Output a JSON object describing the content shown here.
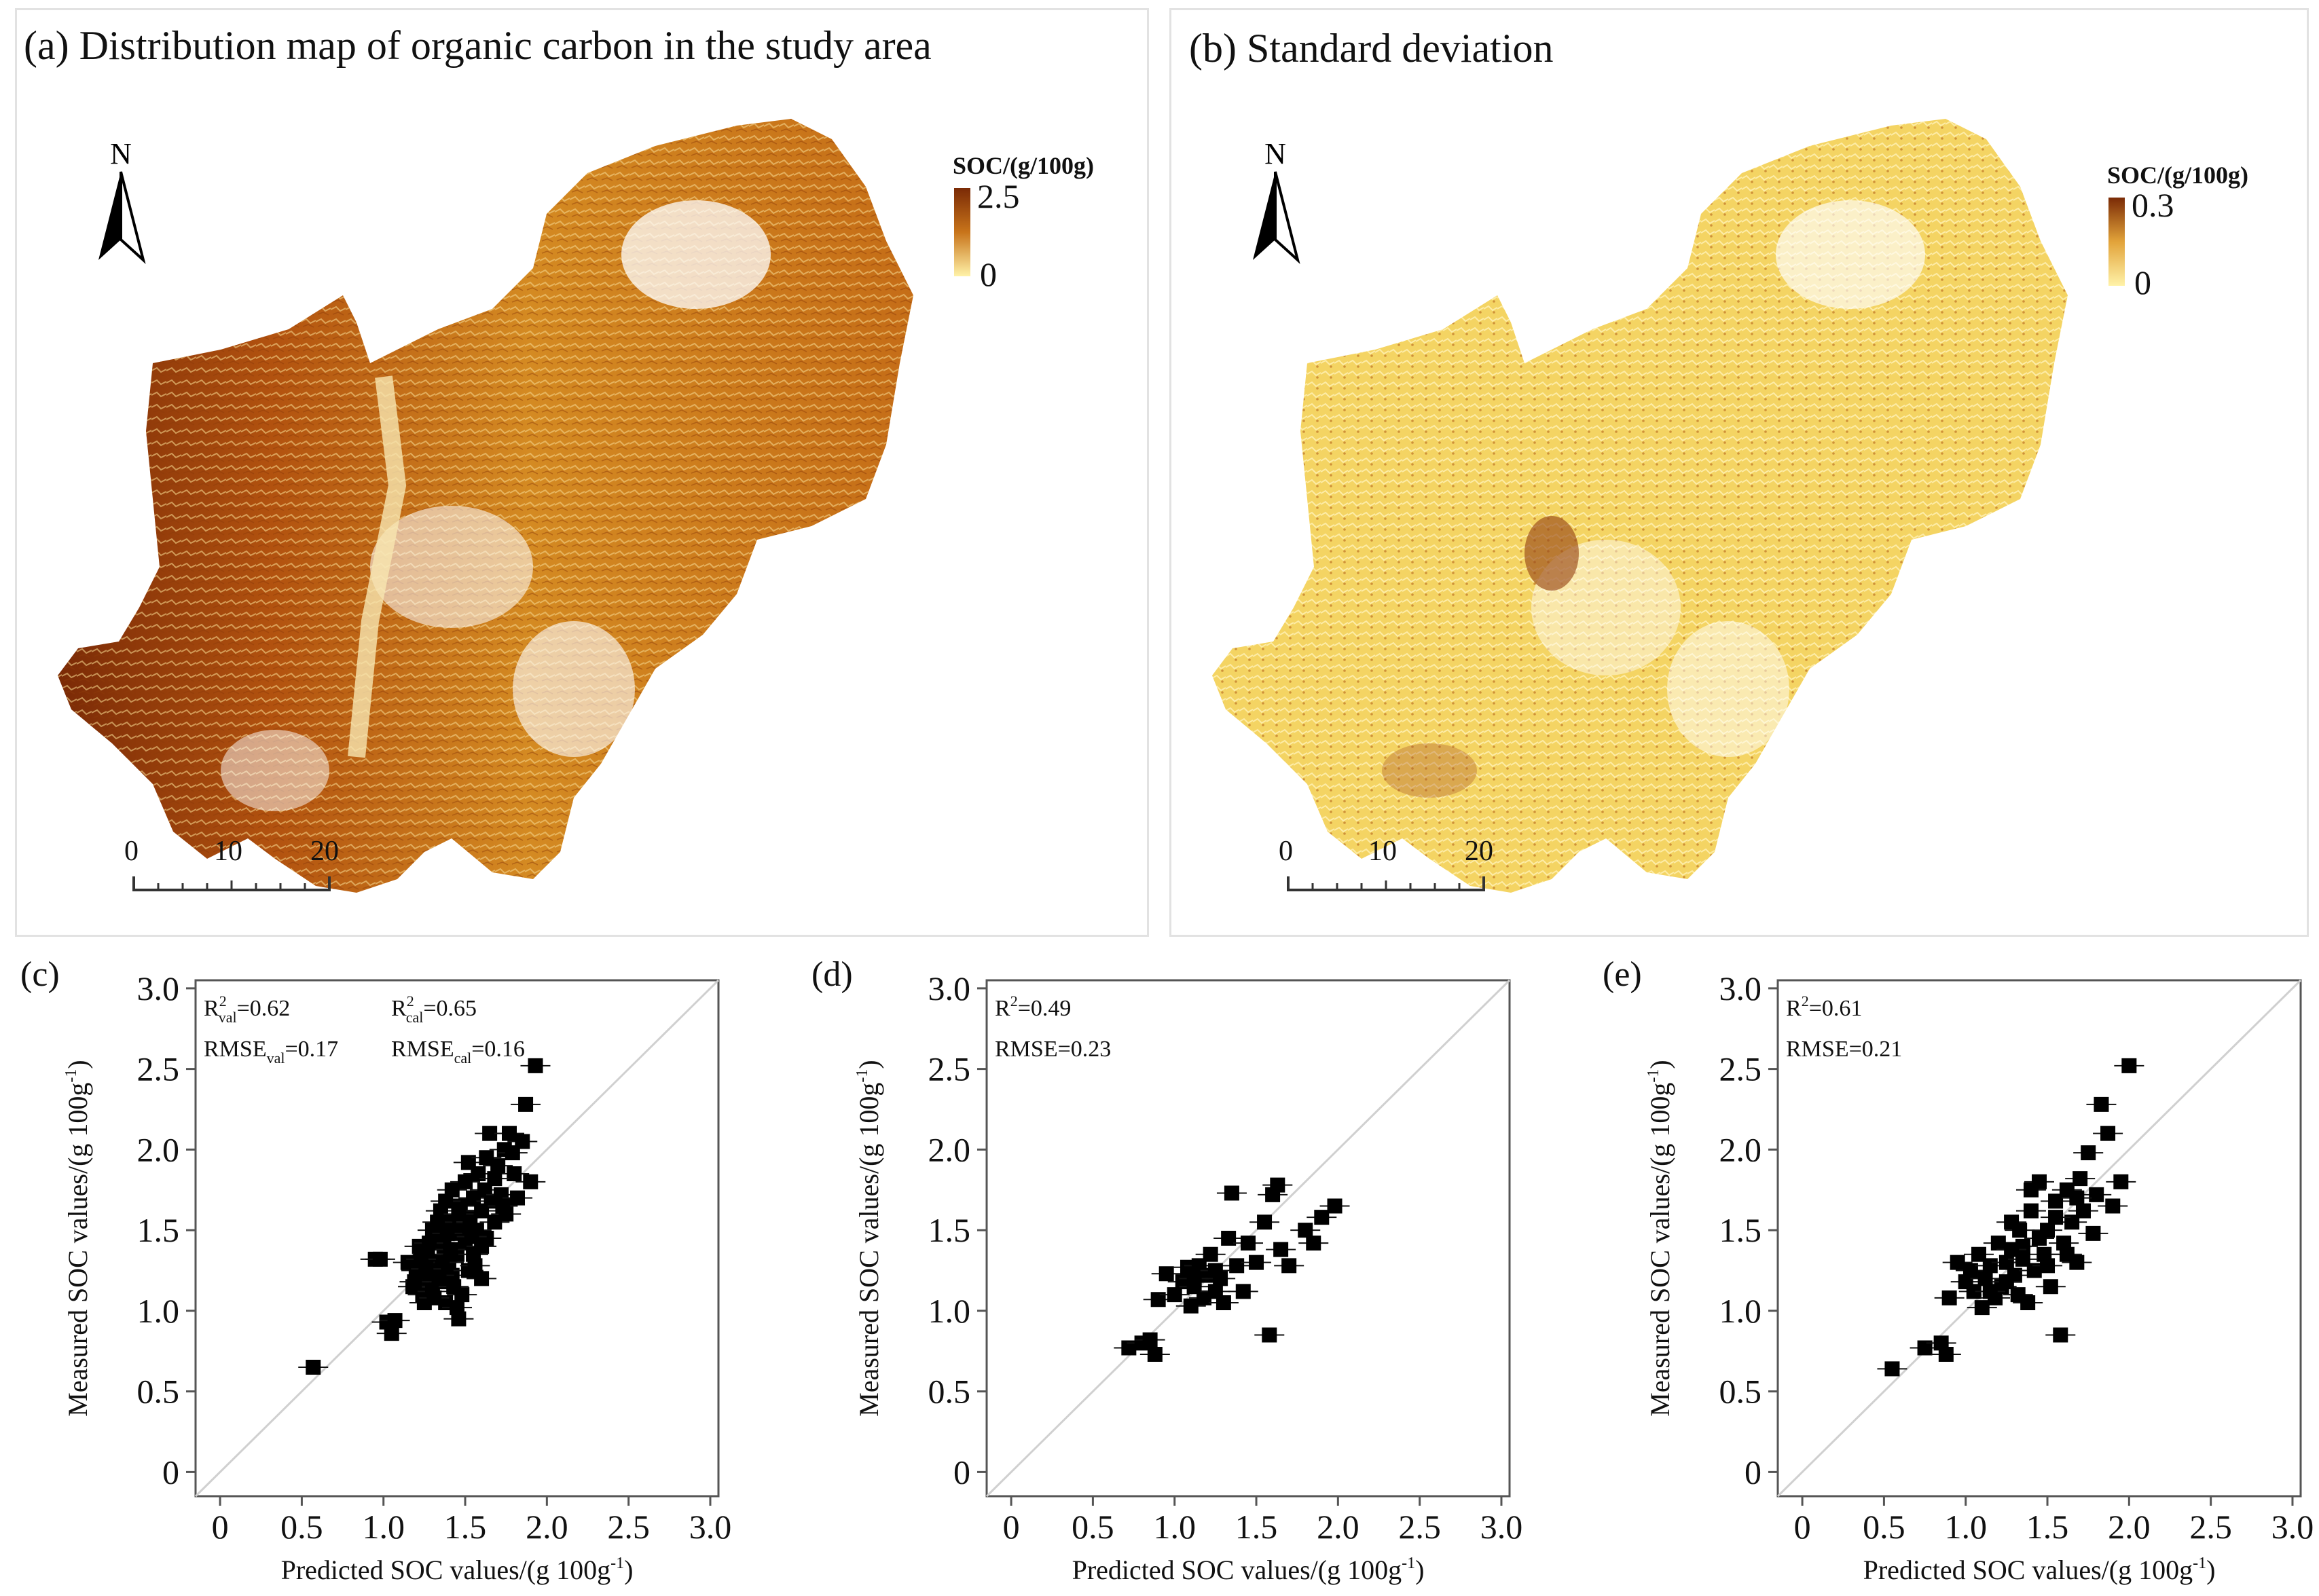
{
  "panel_a": {
    "title": "(a) Distribution map of organic carbon in the study area",
    "north": "N",
    "legend_title": "SOC/(g/100g)",
    "legend_max": "2.5",
    "legend_min": "0",
    "scale_labels": [
      "0",
      "10",
      "20"
    ],
    "colors": {
      "high": "#7a2a06",
      "mid": "#c8741a",
      "low": "#fff2a8"
    }
  },
  "panel_b": {
    "title": "(b) Standard deviation",
    "north": "N",
    "legend_title": "SOC/(g/100g)",
    "legend_max": "0.3",
    "legend_min": "0",
    "scale_labels": [
      "0",
      "10",
      "20"
    ],
    "colors": {
      "high": "#7a2a06",
      "mid": "#e2a33a",
      "low": "#fff2a8"
    }
  },
  "chart_data": [
    {
      "id": "c",
      "type": "scatter",
      "panel_label": "(c)",
      "xlabel": "Predicted  SOC values/(g 100g",
      "xlabel_sup": "-1",
      "ylabel": "Measured SOC values/(g 100g",
      "ylabel_sup": "-1",
      "xlim": [
        -0.15,
        3.05
      ],
      "ylim": [
        -0.15,
        3.05
      ],
      "ticks": [
        "0",
        "0.5",
        "1.0",
        "1.5",
        "2.0",
        "2.5",
        "3.0"
      ],
      "tick_values": [
        0,
        0.5,
        1.0,
        1.5,
        2.0,
        2.5,
        3.0
      ],
      "stats": [
        {
          "pre": "R",
          "sup": "2",
          "sub": "val",
          "post": "=0.62"
        },
        {
          "pre": "R",
          "sup": "2",
          "sub": "cal",
          "post": "=0.65"
        },
        {
          "pre": "RMSE",
          "sup": "",
          "sub": "val",
          "post": "=0.17"
        },
        {
          "pre": "RMSE",
          "sup": "",
          "sub": "cal",
          "post": "=0.16"
        }
      ],
      "points": [
        [
          0.57,
          0.65
        ],
        [
          0.95,
          1.32
        ],
        [
          0.98,
          1.32
        ],
        [
          1.02,
          0.93
        ],
        [
          1.05,
          0.86
        ],
        [
          1.07,
          0.94
        ],
        [
          1.15,
          1.3
        ],
        [
          1.18,
          1.15
        ],
        [
          1.2,
          1.25
        ],
        [
          1.22,
          1.4
        ],
        [
          1.24,
          1.1
        ],
        [
          1.25,
          1.05
        ],
        [
          1.27,
          1.35
        ],
        [
          1.28,
          1.2
        ],
        [
          1.3,
          1.5
        ],
        [
          1.3,
          1.12
        ],
        [
          1.32,
          1.28
        ],
        [
          1.33,
          1.45
        ],
        [
          1.35,
          1.18
        ],
        [
          1.35,
          1.62
        ],
        [
          1.37,
          1.4
        ],
        [
          1.38,
          1.05
        ],
        [
          1.4,
          1.3
        ],
        [
          1.4,
          1.55
        ],
        [
          1.42,
          1.75
        ],
        [
          1.42,
          1.22
        ],
        [
          1.44,
          1.48
        ],
        [
          1.45,
          1.35
        ],
        [
          1.46,
          0.95
        ],
        [
          1.47,
          1.65
        ],
        [
          1.48,
          1.1
        ],
        [
          1.5,
          1.42
        ],
        [
          1.5,
          1.8
        ],
        [
          1.52,
          1.25
        ],
        [
          1.53,
          1.58
        ],
        [
          1.55,
          1.7
        ],
        [
          1.55,
          1.35
        ],
        [
          1.57,
          1.5
        ],
        [
          1.58,
          1.85
        ],
        [
          1.6,
          1.62
        ],
        [
          1.6,
          1.2
        ],
        [
          1.62,
          1.75
        ],
        [
          1.63,
          1.45
        ],
        [
          1.65,
          2.1
        ],
        [
          1.66,
          1.68
        ],
        [
          1.68,
          1.55
        ],
        [
          1.7,
          1.9
        ],
        [
          1.72,
          1.72
        ],
        [
          1.74,
          2.0
        ],
        [
          1.75,
          1.6
        ],
        [
          1.77,
          2.1
        ],
        [
          1.8,
          1.85
        ],
        [
          1.82,
          1.7
        ],
        [
          1.85,
          2.05
        ],
        [
          1.87,
          2.28
        ],
        [
          1.9,
          1.8
        ],
        [
          1.93,
          2.52
        ],
        [
          1.36,
          1.3
        ],
        [
          1.43,
          1.15
        ],
        [
          1.28,
          1.42
        ],
        [
          1.33,
          1.55
        ],
        [
          1.48,
          1.5
        ],
        [
          1.56,
          1.28
        ],
        [
          1.23,
          1.32
        ],
        [
          1.38,
          1.68
        ],
        [
          1.6,
          1.4
        ],
        [
          1.52,
          1.92
        ],
        [
          1.46,
          1.6
        ],
        [
          1.68,
          1.82
        ],
        [
          1.41,
          1.38
        ],
        [
          1.34,
          1.22
        ],
        [
          1.19,
          1.18
        ],
        [
          1.73,
          1.65
        ],
        [
          1.63,
          1.95
        ],
        [
          1.79,
          1.98
        ],
        [
          1.54,
          1.46
        ],
        [
          1.45,
          1.02
        ],
        [
          1.31,
          1.08
        ],
        [
          1.26,
          1.26
        ],
        [
          1.39,
          1.48
        ]
      ]
    },
    {
      "id": "d",
      "type": "scatter",
      "panel_label": "(d)",
      "xlabel": "Predicted  SOC values/(g 100g",
      "xlabel_sup": "-1",
      "ylabel": "Measured SOC values/(g 100g",
      "ylabel_sup": "-1",
      "xlim": [
        -0.15,
        3.05
      ],
      "ylim": [
        -0.15,
        3.05
      ],
      "ticks": [
        "0",
        "0.5",
        "1.0",
        "1.5",
        "2.0",
        "2.5",
        "3.0"
      ],
      "tick_values": [
        0,
        0.5,
        1.0,
        1.5,
        2.0,
        2.5,
        3.0
      ],
      "stats": [
        {
          "pre": "R",
          "sup": "2",
          "sub": "",
          "post": "=0.49"
        },
        {
          "pre": "RMSE",
          "sup": "",
          "sub": "",
          "post": "=0.23"
        }
      ],
      "points": [
        [
          0.72,
          0.77
        ],
        [
          0.8,
          0.8
        ],
        [
          0.85,
          0.82
        ],
        [
          0.88,
          0.73
        ],
        [
          0.9,
          1.07
        ],
        [
          0.95,
          1.23
        ],
        [
          1.0,
          1.1
        ],
        [
          1.05,
          1.18
        ],
        [
          1.08,
          1.27
        ],
        [
          1.1,
          1.03
        ],
        [
          1.12,
          1.15
        ],
        [
          1.15,
          1.28
        ],
        [
          1.18,
          1.08
        ],
        [
          1.2,
          1.22
        ],
        [
          1.22,
          1.35
        ],
        [
          1.25,
          1.12
        ],
        [
          1.28,
          1.2
        ],
        [
          1.3,
          1.05
        ],
        [
          1.33,
          1.45
        ],
        [
          1.35,
          1.73
        ],
        [
          1.38,
          1.28
        ],
        [
          1.42,
          1.12
        ],
        [
          1.45,
          1.42
        ],
        [
          1.5,
          1.3
        ],
        [
          1.55,
          1.55
        ],
        [
          1.58,
          0.85
        ],
        [
          1.6,
          1.72
        ],
        [
          1.63,
          1.78
        ],
        [
          1.65,
          1.38
        ],
        [
          1.7,
          1.28
        ],
        [
          1.8,
          1.5
        ],
        [
          1.85,
          1.42
        ],
        [
          1.9,
          1.58
        ],
        [
          1.98,
          1.65
        ],
        [
          1.12,
          1.2
        ],
        [
          1.25,
          1.25
        ]
      ]
    },
    {
      "id": "e",
      "type": "scatter",
      "panel_label": "(e)",
      "xlabel": "Predicted  SOC values/(g 100g",
      "xlabel_sup": "-1",
      "ylabel": "Measured SOC values/(g 100g",
      "ylabel_sup": "-1",
      "xlim": [
        -0.15,
        3.05
      ],
      "ylim": [
        -0.15,
        3.05
      ],
      "ticks": [
        "0",
        "0.5",
        "1.0",
        "1.5",
        "2.0",
        "2.5",
        "3.0"
      ],
      "tick_values": [
        0,
        0.5,
        1.0,
        1.5,
        2.0,
        2.5,
        3.0
      ],
      "stats": [
        {
          "pre": "R",
          "sup": "2",
          "sub": "",
          "post": "=0.61"
        },
        {
          "pre": "RMSE",
          "sup": "",
          "sub": "",
          "post": "=0.21"
        }
      ],
      "points": [
        [
          0.55,
          0.64
        ],
        [
          0.75,
          0.77
        ],
        [
          0.85,
          0.8
        ],
        [
          0.88,
          0.73
        ],
        [
          0.9,
          1.08
        ],
        [
          0.95,
          1.3
        ],
        [
          1.0,
          1.18
        ],
        [
          1.03,
          1.25
        ],
        [
          1.05,
          1.12
        ],
        [
          1.08,
          1.35
        ],
        [
          1.1,
          1.02
        ],
        [
          1.12,
          1.2
        ],
        [
          1.15,
          1.28
        ],
        [
          1.18,
          1.08
        ],
        [
          1.2,
          1.42
        ],
        [
          1.22,
          1.15
        ],
        [
          1.25,
          1.3
        ],
        [
          1.28,
          1.55
        ],
        [
          1.3,
          1.22
        ],
        [
          1.32,
          1.1
        ],
        [
          1.35,
          1.4
        ],
        [
          1.38,
          1.05
        ],
        [
          1.4,
          1.62
        ],
        [
          1.42,
          1.25
        ],
        [
          1.45,
          1.8
        ],
        [
          1.48,
          1.35
        ],
        [
          1.5,
          1.5
        ],
        [
          1.52,
          1.15
        ],
        [
          1.55,
          1.68
        ],
        [
          1.58,
          0.85
        ],
        [
          1.6,
          1.42
        ],
        [
          1.62,
          1.75
        ],
        [
          1.65,
          1.55
        ],
        [
          1.68,
          1.3
        ],
        [
          1.7,
          1.82
        ],
        [
          1.72,
          1.62
        ],
        [
          1.75,
          1.98
        ],
        [
          1.78,
          1.48
        ],
        [
          1.8,
          1.72
        ],
        [
          1.83,
          2.28
        ],
        [
          1.87,
          2.1
        ],
        [
          1.9,
          1.65
        ],
        [
          1.95,
          1.8
        ],
        [
          2.0,
          2.52
        ],
        [
          1.35,
          1.32
        ],
        [
          1.25,
          1.18
        ],
        [
          1.45,
          1.45
        ],
        [
          1.55,
          1.58
        ],
        [
          1.15,
          1.12
        ],
        [
          1.62,
          1.35
        ],
        [
          1.4,
          1.75
        ],
        [
          1.5,
          1.28
        ],
        [
          1.68,
          1.7
        ],
        [
          1.33,
          1.5
        ],
        [
          1.28,
          1.38
        ]
      ]
    }
  ]
}
